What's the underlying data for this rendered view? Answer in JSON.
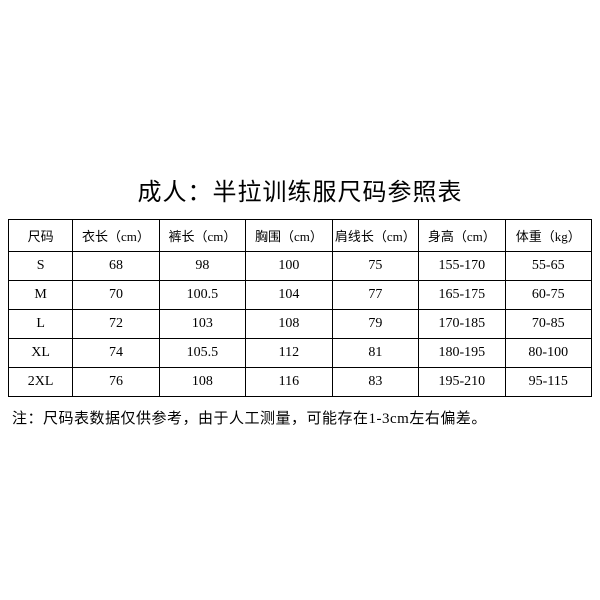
{
  "title": "成人：半拉训练服尺码参照表",
  "table": {
    "columns": [
      "尺码",
      "衣长（cm）",
      "裤长（cm）",
      "胸围（cm）",
      "肩线长（cm）",
      "身高（cm）",
      "体重（kg）"
    ],
    "rows": [
      [
        "S",
        "68",
        "98",
        "100",
        "75",
        "155-170",
        "55-65"
      ],
      [
        "M",
        "70",
        "100.5",
        "104",
        "77",
        "165-175",
        "60-75"
      ],
      [
        "L",
        "72",
        "103",
        "108",
        "79",
        "170-185",
        "70-85"
      ],
      [
        "XL",
        "74",
        "105.5",
        "112",
        "81",
        "180-195",
        "80-100"
      ],
      [
        "2XL",
        "76",
        "108",
        "116",
        "83",
        "195-210",
        "95-115"
      ]
    ],
    "border_color": "#000000",
    "background_color": "#ffffff",
    "header_fontsize": 13,
    "cell_fontsize": 14
  },
  "note": "注：尺码表数据仅供参考，由于人工测量，可能存在1-3cm左右偏差。",
  "title_fontsize": 24,
  "note_fontsize": 15,
  "text_color": "#000000"
}
